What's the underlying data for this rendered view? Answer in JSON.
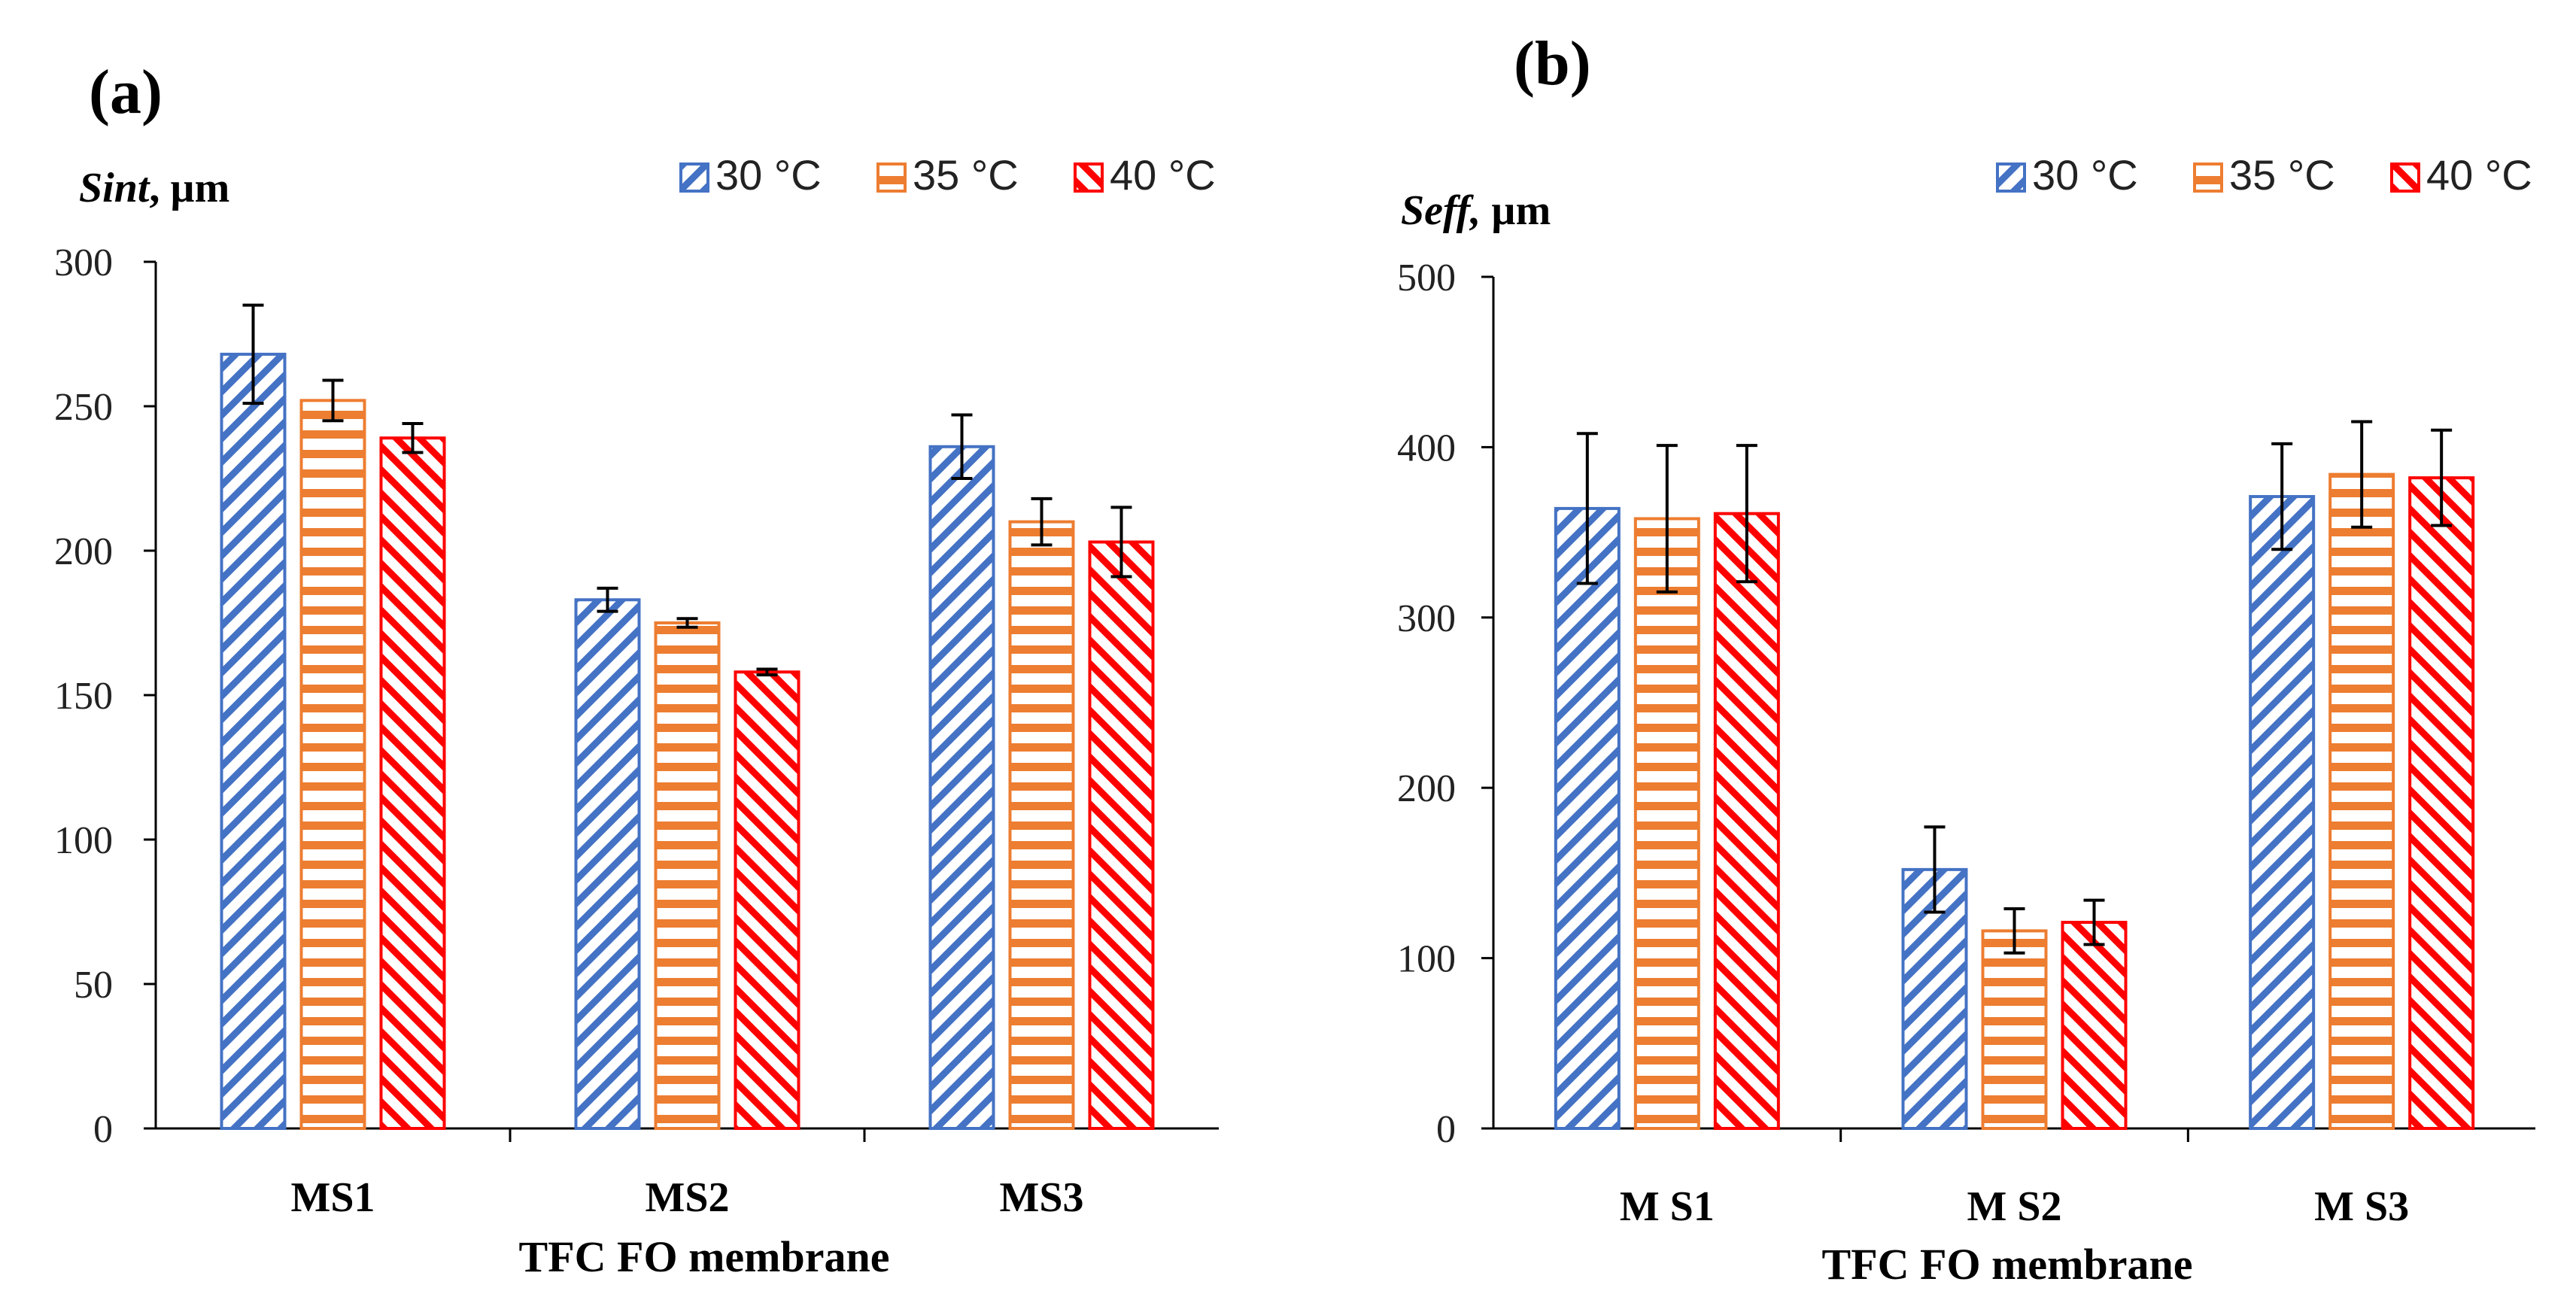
{
  "colors": {
    "s30": "#4472C4",
    "s35": "#ED7D31",
    "s40": "#FF0000"
  },
  "chart_data": [
    {
      "type": "bar",
      "panel_label": "(a)",
      "ylabel_var": "Sint",
      "ylabel_unit": ", µm",
      "xlabel": "TFC  FO membrane",
      "categories": [
        "MS1",
        "MS2",
        "MS3"
      ],
      "ylim": [
        0,
        300
      ],
      "yticks": [
        0,
        50,
        100,
        150,
        200,
        250,
        300
      ],
      "legend_position": "top-right",
      "series": [
        {
          "name": "30 °C",
          "values": [
            268,
            183,
            236
          ],
          "errors": [
            17,
            4,
            11
          ]
        },
        {
          "name": "35 °C",
          "values": [
            252,
            175,
            210
          ],
          "errors": [
            7,
            1.5,
            8
          ]
        },
        {
          "name": "40 °C",
          "values": [
            239,
            158,
            203
          ],
          "errors": [
            5,
            1,
            12
          ]
        }
      ]
    },
    {
      "type": "bar",
      "panel_label": "(b)",
      "ylabel_var": "Seff,",
      "ylabel_unit": " µm",
      "xlabel": "TFC  FO membrane",
      "categories": [
        "M S1",
        "M S2",
        "M S3"
      ],
      "ylim": [
        0,
        500
      ],
      "yticks": [
        0,
        100,
        200,
        300,
        400,
        500
      ],
      "legend_position": "top-right",
      "series": [
        {
          "name": "30 °C",
          "values": [
            364,
            152,
            371
          ],
          "errors": [
            44,
            25,
            31
          ]
        },
        {
          "name": "35 °C",
          "values": [
            358,
            116,
            384
          ],
          "errors": [
            43,
            13,
            31
          ]
        },
        {
          "name": "40 °C",
          "values": [
            361,
            121,
            382
          ],
          "errors": [
            40,
            13,
            28
          ]
        }
      ]
    }
  ]
}
